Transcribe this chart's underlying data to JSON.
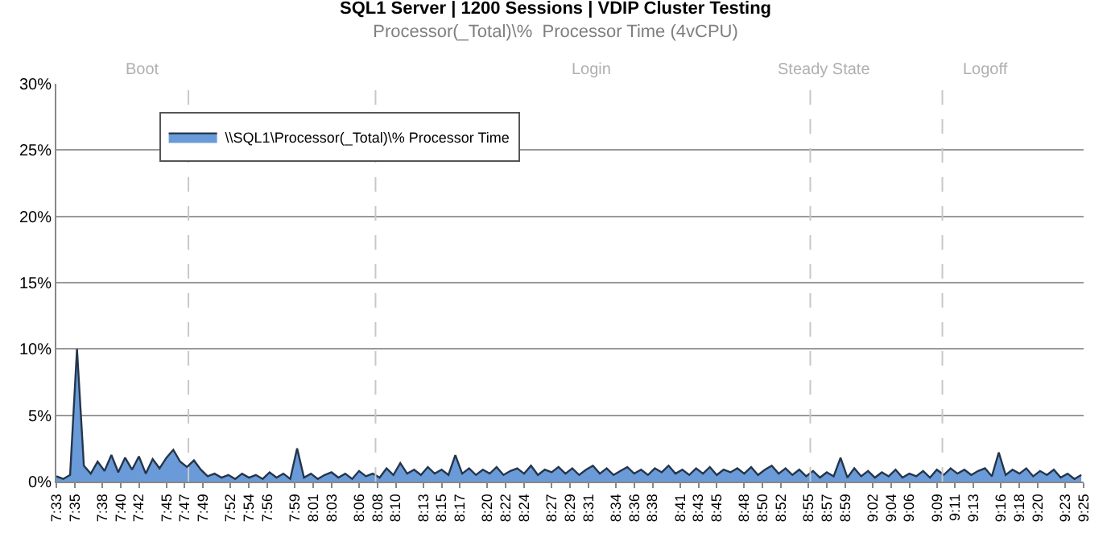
{
  "chart_data": {
    "type": "area",
    "title": "SQL1 Server | 1200 Sessions | VDIP Cluster Testing",
    "subtitle": "Processor(_Total)\\%  Processor Time (4vCPU)",
    "x": [
      7.55,
      7.5625,
      7.575,
      7.5875,
      7.6,
      7.6125,
      7.625,
      7.6375,
      7.65,
      7.6625,
      7.675,
      7.6875,
      7.7,
      7.7125,
      7.725,
      7.7375,
      7.75,
      7.7625,
      7.775,
      7.7875,
      7.8,
      7.8125,
      7.825,
      7.8375,
      7.85,
      7.8625,
      7.875,
      7.8875,
      7.9,
      7.9125,
      7.925,
      7.9375,
      7.95,
      7.9625,
      7.975,
      7.9875,
      8.0,
      8.0125,
      8.025,
      8.0375,
      8.05,
      8.0625,
      8.075,
      8.0875,
      8.1,
      8.1125,
      8.125,
      8.1375,
      8.15,
      8.1625,
      8.175,
      8.1875,
      8.2,
      8.2125,
      8.225,
      8.2375,
      8.25,
      8.2625,
      8.275,
      8.2875,
      8.3,
      8.3125,
      8.325,
      8.3375,
      8.35,
      8.3625,
      8.375,
      8.3875,
      8.4,
      8.4125,
      8.425,
      8.4375,
      8.45,
      8.4625,
      8.475,
      8.4875,
      8.5,
      8.5125,
      8.525,
      8.5375,
      8.55,
      8.5625,
      8.575,
      8.5875,
      8.6,
      8.6125,
      8.625,
      8.6375,
      8.65,
      8.6625,
      8.675,
      8.6875,
      8.7,
      8.7125,
      8.725,
      8.7375,
      8.75,
      8.7625,
      8.775,
      8.7875,
      8.8,
      8.8125,
      8.825,
      8.8375,
      8.85,
      8.8625,
      8.875,
      8.8875,
      8.9,
      8.9125,
      8.925,
      8.9375,
      8.95,
      8.9625,
      8.975,
      8.9875,
      9.0,
      9.0125,
      9.025,
      9.0375,
      9.05,
      9.0625,
      9.075,
      9.0875,
      9.1,
      9.1125,
      9.125,
      9.1375,
      9.15,
      9.1625,
      9.175,
      9.1875,
      9.2,
      9.2125,
      9.225,
      9.2375,
      9.25,
      9.2625,
      9.275,
      9.2875,
      9.3,
      9.3125,
      9.325,
      9.3375,
      9.35,
      9.3625,
      9.375,
      9.3875,
      9.4,
      9.4125
    ],
    "series": [
      {
        "name": "\\\\SQL1\\Processor(_Total)\\% Processor Time",
        "color": "#6a9bd8",
        "values": [
          0.4,
          0.2,
          0.5,
          10.0,
          1.2,
          0.6,
          1.5,
          0.8,
          2.0,
          0.7,
          1.8,
          0.9,
          1.9,
          0.6,
          1.7,
          1.0,
          1.8,
          2.4,
          1.5,
          1.1,
          1.6,
          0.9,
          0.4,
          0.6,
          0.3,
          0.5,
          0.2,
          0.6,
          0.3,
          0.5,
          0.2,
          0.7,
          0.3,
          0.6,
          0.2,
          2.5,
          0.3,
          0.6,
          0.2,
          0.5,
          0.7,
          0.3,
          0.6,
          0.2,
          0.8,
          0.4,
          0.6,
          0.3,
          1.0,
          0.5,
          1.4,
          0.6,
          0.9,
          0.5,
          1.1,
          0.6,
          0.9,
          0.5,
          2.0,
          0.6,
          1.0,
          0.5,
          0.9,
          0.6,
          1.1,
          0.5,
          0.8,
          1.0,
          0.6,
          1.2,
          0.5,
          0.9,
          0.7,
          1.1,
          0.6,
          1.0,
          0.5,
          0.9,
          1.2,
          0.6,
          1.0,
          0.5,
          0.8,
          1.1,
          0.6,
          0.9,
          0.5,
          1.0,
          0.7,
          1.2,
          0.6,
          0.9,
          0.5,
          1.0,
          0.6,
          1.1,
          0.5,
          0.9,
          0.7,
          1.0,
          0.6,
          1.1,
          0.5,
          0.9,
          1.2,
          0.6,
          1.0,
          0.5,
          0.9,
          0.4,
          0.8,
          0.3,
          0.7,
          0.4,
          1.8,
          0.3,
          1.0,
          0.4,
          0.8,
          0.3,
          0.7,
          0.4,
          0.9,
          0.3,
          0.6,
          0.4,
          0.8,
          0.3,
          0.9,
          0.5,
          1.0,
          0.6,
          0.9,
          0.5,
          0.8,
          1.0,
          0.4,
          2.2,
          0.5,
          0.9,
          0.6,
          1.0,
          0.4,
          0.8,
          0.5,
          0.9,
          0.3,
          0.6,
          0.2,
          0.5
        ]
      }
    ],
    "xlim": [
      7.55,
      9.4167
    ],
    "xticks": [
      {
        "value": 7.55,
        "label": "7:33"
      },
      {
        "value": 7.5833,
        "label": "7:35"
      },
      {
        "value": 7.6333,
        "label": "7:38"
      },
      {
        "value": 7.6667,
        "label": "7:40"
      },
      {
        "value": 7.7,
        "label": "7:42"
      },
      {
        "value": 7.75,
        "label": "7:45"
      },
      {
        "value": 7.7833,
        "label": "7:47"
      },
      {
        "value": 7.8167,
        "label": "7:49"
      },
      {
        "value": 7.8667,
        "label": "7:52"
      },
      {
        "value": 7.9,
        "label": "7:54"
      },
      {
        "value": 7.9333,
        "label": "7:56"
      },
      {
        "value": 7.9833,
        "label": "7:59"
      },
      {
        "value": 8.0167,
        "label": "8:01"
      },
      {
        "value": 8.05,
        "label": "8:03"
      },
      {
        "value": 8.1,
        "label": "8:06"
      },
      {
        "value": 8.1333,
        "label": "8:08"
      },
      {
        "value": 8.1667,
        "label": "8:10"
      },
      {
        "value": 8.2167,
        "label": "8:13"
      },
      {
        "value": 8.25,
        "label": "8:15"
      },
      {
        "value": 8.2833,
        "label": "8:17"
      },
      {
        "value": 8.3333,
        "label": "8:20"
      },
      {
        "value": 8.3667,
        "label": "8:22"
      },
      {
        "value": 8.4,
        "label": "8:24"
      },
      {
        "value": 8.45,
        "label": "8:27"
      },
      {
        "value": 8.4833,
        "label": "8:29"
      },
      {
        "value": 8.5167,
        "label": "8:31"
      },
      {
        "value": 8.5667,
        "label": "8:34"
      },
      {
        "value": 8.6,
        "label": "8:36"
      },
      {
        "value": 8.6333,
        "label": "8:38"
      },
      {
        "value": 8.6833,
        "label": "8:41"
      },
      {
        "value": 8.7167,
        "label": "8:43"
      },
      {
        "value": 8.75,
        "label": "8:45"
      },
      {
        "value": 8.8,
        "label": "8:48"
      },
      {
        "value": 8.8333,
        "label": "8:50"
      },
      {
        "value": 8.8667,
        "label": "8:52"
      },
      {
        "value": 8.9167,
        "label": "8:55"
      },
      {
        "value": 8.95,
        "label": "8:57"
      },
      {
        "value": 8.9833,
        "label": "8:59"
      },
      {
        "value": 9.0333,
        "label": "9:02"
      },
      {
        "value": 9.0667,
        "label": "9:04"
      },
      {
        "value": 9.1,
        "label": "9:06"
      },
      {
        "value": 9.15,
        "label": "9:09"
      },
      {
        "value": 9.1833,
        "label": "9:11"
      },
      {
        "value": 9.2167,
        "label": "9:13"
      },
      {
        "value": 9.2667,
        "label": "9:16"
      },
      {
        "value": 9.3,
        "label": "9:18"
      },
      {
        "value": 9.3333,
        "label": "9:20"
      },
      {
        "value": 9.3833,
        "label": "9:23"
      },
      {
        "value": 9.4167,
        "label": "9:25"
      }
    ],
    "ylim": [
      0,
      30
    ],
    "yticks": [
      {
        "value": 0,
        "label": "0%"
      },
      {
        "value": 5,
        "label": "5%"
      },
      {
        "value": 10,
        "label": "10%"
      },
      {
        "value": 15,
        "label": "15%"
      },
      {
        "value": 20,
        "label": "20%"
      },
      {
        "value": 25,
        "label": "25%"
      },
      {
        "value": 30,
        "label": "30%"
      }
    ],
    "grid": "y",
    "legend": "top left",
    "ref_lines": [
      {
        "axis": "x",
        "value": 7.79,
        "color": "#c8c8c8",
        "line_style": "dashed"
      },
      {
        "axis": "x",
        "value": 8.13,
        "color": "#c8c8c8",
        "line_style": "dashed"
      },
      {
        "axis": "x",
        "value": 8.92,
        "color": "#c8c8c8",
        "line_style": "dashed"
      },
      {
        "axis": "x",
        "value": 9.16,
        "color": "#c8c8c8",
        "line_style": "dashed"
      }
    ],
    "annotations": [
      "Boot",
      "Login",
      "Steady State",
      "Logoff"
    ]
  }
}
